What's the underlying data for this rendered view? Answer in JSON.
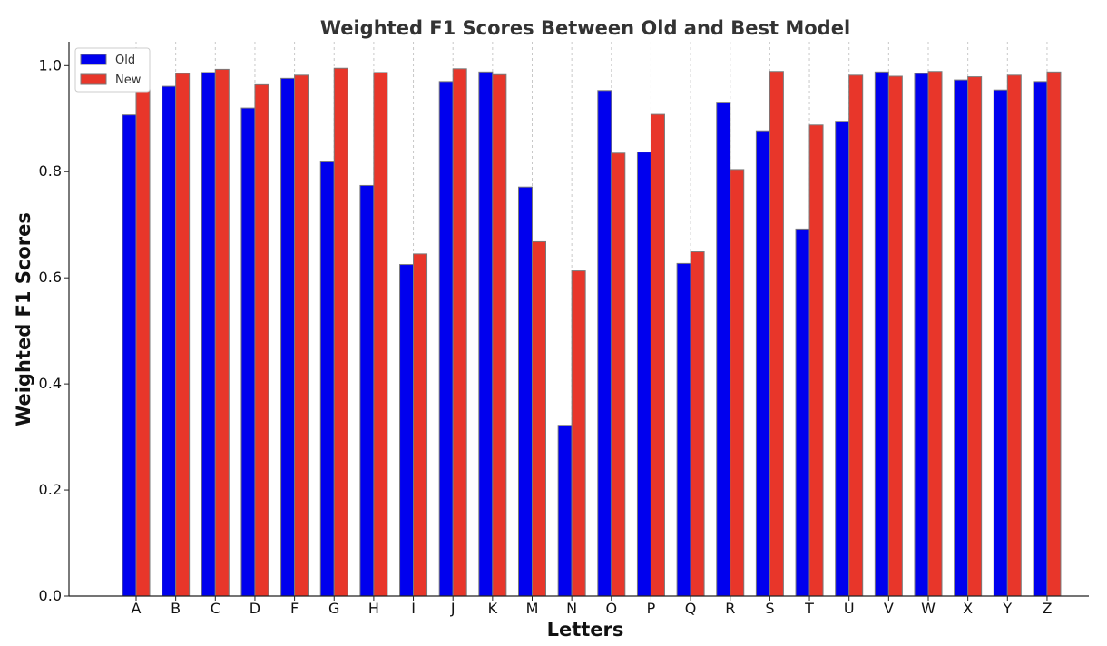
{
  "chart_data": {
    "type": "bar",
    "title": "Weighted F1 Scores Between Old and Best Model",
    "xlabel": "Letters",
    "ylabel": "Weighted F1 Scores",
    "ylim": [
      0,
      1.045
    ],
    "yticks": [
      "0.0",
      "0.2",
      "0.4",
      "0.6",
      "0.8",
      "1.0"
    ],
    "ytick_values": [
      0.0,
      0.2,
      0.4,
      0.6,
      0.8,
      1.0
    ],
    "grid": "vertical dashed",
    "legend_position": "top-left",
    "categories": [
      "A",
      "B",
      "C",
      "D",
      "F",
      "G",
      "H",
      "I",
      "J",
      "K",
      "M",
      "N",
      "O",
      "P",
      "Q",
      "R",
      "S",
      "T",
      "U",
      "V",
      "W",
      "X",
      "Y",
      "Z"
    ],
    "series": [
      {
        "name": "Old",
        "color": "#0000ee",
        "values": [
          0.907,
          0.961,
          0.987,
          0.92,
          0.976,
          0.82,
          0.774,
          0.625,
          0.97,
          0.988,
          0.771,
          0.322,
          0.953,
          0.837,
          0.627,
          0.931,
          0.877,
          0.692,
          0.895,
          0.988,
          0.985,
          0.973,
          0.954,
          0.97
        ]
      },
      {
        "name": "New",
        "color": "#e8362a",
        "values": [
          0.96,
          0.985,
          0.993,
          0.964,
          0.982,
          0.995,
          0.987,
          0.645,
          0.994,
          0.983,
          0.668,
          0.613,
          0.835,
          0.908,
          0.649,
          0.804,
          0.989,
          0.888,
          0.982,
          0.98,
          0.989,
          0.979,
          0.982,
          0.988
        ]
      }
    ]
  }
}
